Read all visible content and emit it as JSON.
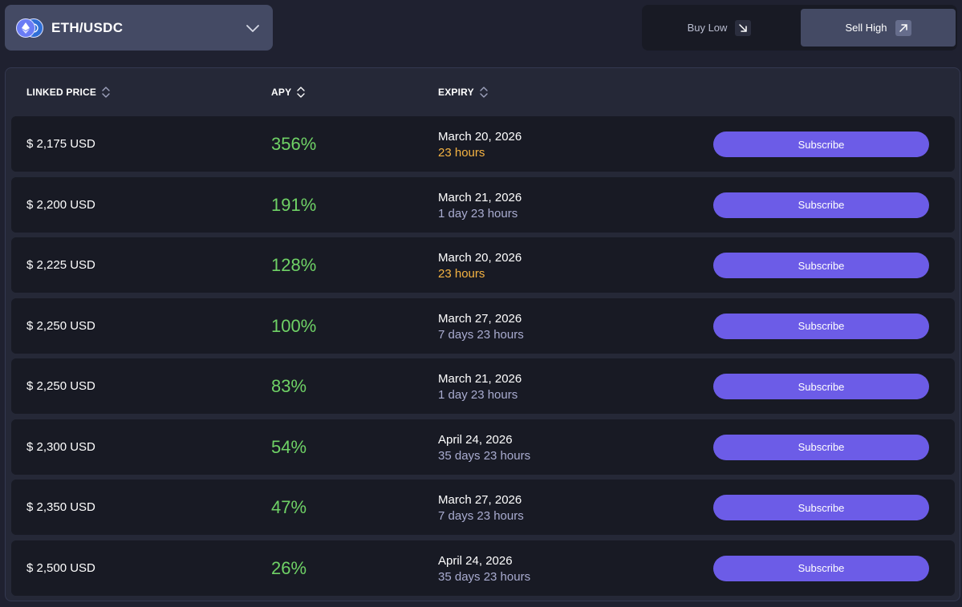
{
  "pair_selector": {
    "label": "ETH/USDC",
    "icons": [
      "eth-icon",
      "usdc-icon"
    ]
  },
  "mode_toggle": {
    "buy_label": "Buy Low",
    "sell_label": "Sell High",
    "active": "sell"
  },
  "table": {
    "headers": {
      "price": "LINKED PRICE",
      "apy": "APY",
      "expiry": "EXPIRY"
    },
    "rows": [
      {
        "price": "$ 2,175 USD",
        "apy": "356%",
        "date": "March 20, 2026",
        "remaining": "23 hours",
        "status": "soon",
        "action": "Subscribe"
      },
      {
        "price": "$ 2,200 USD",
        "apy": "191%",
        "date": "March 21, 2026",
        "remaining": "1 day 23 hours",
        "status": "later",
        "action": "Subscribe"
      },
      {
        "price": "$ 2,225 USD",
        "apy": "128%",
        "date": "March 20, 2026",
        "remaining": "23 hours",
        "status": "soon",
        "action": "Subscribe"
      },
      {
        "price": "$ 2,250 USD",
        "apy": "100%",
        "date": "March 27, 2026",
        "remaining": "7 days 23 hours",
        "status": "later",
        "action": "Subscribe"
      },
      {
        "price": "$ 2,250 USD",
        "apy": "83%",
        "date": "March 21, 2026",
        "remaining": "1 day 23 hours",
        "status": "later",
        "action": "Subscribe"
      },
      {
        "price": "$ 2,300 USD",
        "apy": "54%",
        "date": "April 24, 2026",
        "remaining": "35 days 23 hours",
        "status": "later",
        "action": "Subscribe"
      },
      {
        "price": "$ 2,350 USD",
        "apy": "47%",
        "date": "March 27, 2026",
        "remaining": "7 days 23 hours",
        "status": "later",
        "action": "Subscribe"
      },
      {
        "price": "$ 2,500 USD",
        "apy": "26%",
        "date": "April 24, 2026",
        "remaining": "35 days 23 hours",
        "status": "later",
        "action": "Subscribe"
      }
    ]
  },
  "colors": {
    "accent": "#6c5ce7",
    "apy_green": "#6fd266",
    "soon_orange": "#f5b342",
    "later_lavender": "#a9acd0"
  }
}
